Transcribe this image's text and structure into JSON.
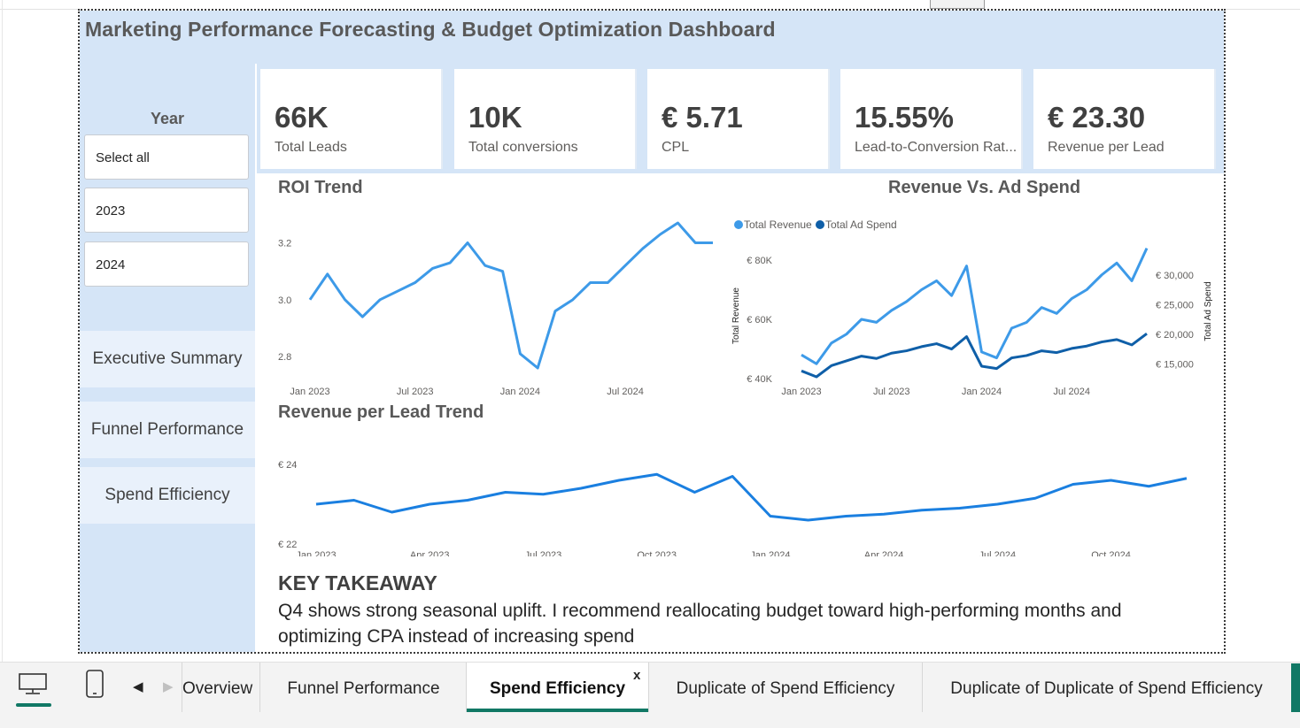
{
  "dashboard": {
    "title": "Marketing Performance Forecasting & Budget Optimization Dashboard",
    "slicer": {
      "label": "Year",
      "options": [
        "Select all",
        "2023",
        "2024"
      ]
    },
    "nav": [
      "Executive Summary",
      "Funnel Performance",
      "Spend Efficiency"
    ],
    "kpis": [
      {
        "value": "66K",
        "label": "Total Leads"
      },
      {
        "value": "10K",
        "label": "Total conversions"
      },
      {
        "value": "€ 5.71",
        "label": "CPL"
      },
      {
        "value": "15.55%",
        "label": "Lead-to-Conversion Rat..."
      },
      {
        "value": "€ 23.30",
        "label": "Revenue per Lead"
      }
    ],
    "takeaway": {
      "heading": "KEY TAKEAWAY",
      "text": "Q4 shows strong seasonal uplift. I recommend reallocating budget toward high-performing months and optimizing CPA instead of increasing spend"
    },
    "colors": {
      "light_blue": "#3d9ae8",
      "dark_blue": "#0f5fa8",
      "panel": "#d5e5f7"
    }
  },
  "chart_data": [
    {
      "type": "line",
      "title": "ROI Trend",
      "x": [
        "2023-01",
        "2023-02",
        "2023-03",
        "2023-04",
        "2023-05",
        "2023-06",
        "2023-07",
        "2023-08",
        "2023-09",
        "2023-10",
        "2023-11",
        "2023-12",
        "2024-01",
        "2024-02",
        "2024-03",
        "2024-04",
        "2024-05",
        "2024-06",
        "2024-07",
        "2024-08",
        "2024-09",
        "2024-10",
        "2024-11",
        "2024-12"
      ],
      "xtick_labels": [
        "Jan 2023",
        "Jul 2023",
        "Jan 2024",
        "Jul 2024"
      ],
      "values": [
        3.0,
        3.09,
        3.0,
        2.94,
        3.0,
        3.03,
        3.06,
        3.11,
        3.13,
        3.2,
        3.12,
        3.1,
        2.81,
        2.76,
        2.96,
        3.0,
        3.06,
        3.06,
        3.12,
        3.18,
        3.23,
        3.27,
        3.2,
        3.2
      ],
      "yticks": [
        "2.8",
        "3.0",
        "3.2"
      ],
      "ylim": [
        2.76,
        3.27
      ]
    },
    {
      "type": "line",
      "title": "Revenue Vs. Ad Spend",
      "x": [
        "2023-01",
        "2023-02",
        "2023-03",
        "2023-04",
        "2023-05",
        "2023-06",
        "2023-07",
        "2023-08",
        "2023-09",
        "2023-10",
        "2023-11",
        "2023-12",
        "2024-01",
        "2024-02",
        "2024-03",
        "2024-04",
        "2024-05",
        "2024-06",
        "2024-07",
        "2024-08",
        "2024-09",
        "2024-10",
        "2024-11",
        "2024-12"
      ],
      "xtick_labels": [
        "Jan 2023",
        "Jul 2023",
        "Jan 2024",
        "Jul 2024"
      ],
      "legend": "top-left",
      "series": [
        {
          "name": "Total Revenue",
          "axis": "left",
          "color": "#3d9ae8",
          "values": [
            48000,
            45000,
            52000,
            55000,
            60000,
            59000,
            63000,
            66000,
            70000,
            73000,
            68000,
            78000,
            49000,
            47000,
            57000,
            59000,
            64000,
            62000,
            67000,
            70000,
            75000,
            79000,
            73000,
            84000
          ]
        },
        {
          "name": "Total Ad Spend",
          "axis": "right",
          "color": "#0f5fa8",
          "values": [
            13800,
            12800,
            14700,
            15500,
            16300,
            15900,
            16800,
            17200,
            17900,
            18400,
            17500,
            19600,
            14600,
            14200,
            16000,
            16400,
            17200,
            16900,
            17600,
            18000,
            18700,
            19100,
            18200,
            20100
          ]
        }
      ],
      "ylabel_left": "Total Revenue",
      "ylabel_right": "Total Ad Spend",
      "yticks_left": [
        "€ 40K",
        "€ 60K",
        "€ 80K"
      ],
      "yticks_right": [
        "€ 15,000",
        "€ 20,000",
        "€ 25,000",
        "€ 30,000"
      ],
      "ylim_left": [
        40000,
        80000
      ],
      "ylim_right": [
        12500,
        30000
      ]
    },
    {
      "type": "line",
      "title": "Revenue per Lead Trend",
      "x": [
        "2023-01",
        "2023-02",
        "2023-03",
        "2023-04",
        "2023-05",
        "2023-06",
        "2023-07",
        "2023-08",
        "2023-09",
        "2023-10",
        "2023-11",
        "2023-12",
        "2024-01",
        "2024-02",
        "2024-03",
        "2024-04",
        "2024-05",
        "2024-06",
        "2024-07",
        "2024-08",
        "2024-09",
        "2024-10",
        "2024-11",
        "2024-12"
      ],
      "xtick_labels": [
        "Jan 2023",
        "Apr 2023",
        "Jul 2023",
        "Oct 2023",
        "Jan 2024",
        "Apr 2024",
        "Jul 2024",
        "Oct 2024"
      ],
      "values": [
        23.0,
        23.1,
        22.8,
        23.0,
        23.1,
        23.3,
        23.25,
        23.4,
        23.6,
        23.75,
        23.3,
        23.7,
        22.7,
        22.6,
        22.7,
        22.75,
        22.85,
        22.9,
        23.0,
        23.15,
        23.5,
        23.6,
        23.45,
        23.65
      ],
      "yticks": [
        "€ 22",
        "€ 24"
      ],
      "ylim": [
        22,
        24
      ]
    }
  ],
  "tabbar": {
    "device_icons": [
      "desktop-icon",
      "phone-icon"
    ],
    "tabs": [
      "Overview",
      "Funnel Performance",
      "Spend Efficiency",
      "Duplicate of Spend Efficiency",
      "Duplicate of Duplicate of Spend Efficiency"
    ],
    "active_tab": "Spend Efficiency",
    "close_label": "x"
  }
}
